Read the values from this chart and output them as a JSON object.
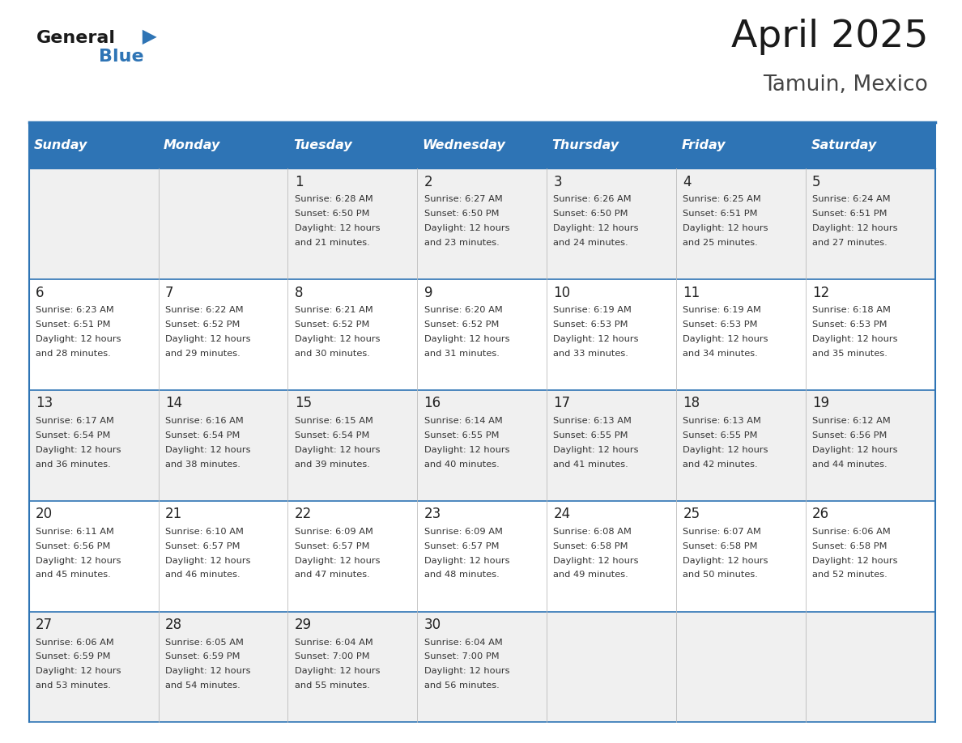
{
  "title": "April 2025",
  "subtitle": "Tamuin, Mexico",
  "days_of_week": [
    "Sunday",
    "Monday",
    "Tuesday",
    "Wednesday",
    "Thursday",
    "Friday",
    "Saturday"
  ],
  "header_bg": "#2E74B5",
  "header_text_color": "#FFFFFF",
  "cell_bg_odd": "#F0F0F0",
  "cell_bg_even": "#FFFFFF",
  "grid_line_color": "#2E74B5",
  "day_number_color": "#222222",
  "cell_text_color": "#333333",
  "title_color": "#1a1a1a",
  "subtitle_color": "#444444",
  "logo_general_color": "#1a1a1a",
  "logo_blue_color": "#2E74B5",
  "logo_triangle_color": "#2E74B5",
  "calendar": [
    [
      {
        "day": "",
        "sunrise": "",
        "sunset": "",
        "daylight": ""
      },
      {
        "day": "",
        "sunrise": "",
        "sunset": "",
        "daylight": ""
      },
      {
        "day": "1",
        "sunrise": "6:28 AM",
        "sunset": "6:50 PM",
        "daylight": "and 21 minutes."
      },
      {
        "day": "2",
        "sunrise": "6:27 AM",
        "sunset": "6:50 PM",
        "daylight": "and 23 minutes."
      },
      {
        "day": "3",
        "sunrise": "6:26 AM",
        "sunset": "6:50 PM",
        "daylight": "and 24 minutes."
      },
      {
        "day": "4",
        "sunrise": "6:25 AM",
        "sunset": "6:51 PM",
        "daylight": "and 25 minutes."
      },
      {
        "day": "5",
        "sunrise": "6:24 AM",
        "sunset": "6:51 PM",
        "daylight": "and 27 minutes."
      }
    ],
    [
      {
        "day": "6",
        "sunrise": "6:23 AM",
        "sunset": "6:51 PM",
        "daylight": "and 28 minutes."
      },
      {
        "day": "7",
        "sunrise": "6:22 AM",
        "sunset": "6:52 PM",
        "daylight": "and 29 minutes."
      },
      {
        "day": "8",
        "sunrise": "6:21 AM",
        "sunset": "6:52 PM",
        "daylight": "and 30 minutes."
      },
      {
        "day": "9",
        "sunrise": "6:20 AM",
        "sunset": "6:52 PM",
        "daylight": "and 31 minutes."
      },
      {
        "day": "10",
        "sunrise": "6:19 AM",
        "sunset": "6:53 PM",
        "daylight": "and 33 minutes."
      },
      {
        "day": "11",
        "sunrise": "6:19 AM",
        "sunset": "6:53 PM",
        "daylight": "and 34 minutes."
      },
      {
        "day": "12",
        "sunrise": "6:18 AM",
        "sunset": "6:53 PM",
        "daylight": "and 35 minutes."
      }
    ],
    [
      {
        "day": "13",
        "sunrise": "6:17 AM",
        "sunset": "6:54 PM",
        "daylight": "and 36 minutes."
      },
      {
        "day": "14",
        "sunrise": "6:16 AM",
        "sunset": "6:54 PM",
        "daylight": "and 38 minutes."
      },
      {
        "day": "15",
        "sunrise": "6:15 AM",
        "sunset": "6:54 PM",
        "daylight": "and 39 minutes."
      },
      {
        "day": "16",
        "sunrise": "6:14 AM",
        "sunset": "6:55 PM",
        "daylight": "and 40 minutes."
      },
      {
        "day": "17",
        "sunrise": "6:13 AM",
        "sunset": "6:55 PM",
        "daylight": "and 41 minutes."
      },
      {
        "day": "18",
        "sunrise": "6:13 AM",
        "sunset": "6:55 PM",
        "daylight": "and 42 minutes."
      },
      {
        "day": "19",
        "sunrise": "6:12 AM",
        "sunset": "6:56 PM",
        "daylight": "and 44 minutes."
      }
    ],
    [
      {
        "day": "20",
        "sunrise": "6:11 AM",
        "sunset": "6:56 PM",
        "daylight": "and 45 minutes."
      },
      {
        "day": "21",
        "sunrise": "6:10 AM",
        "sunset": "6:57 PM",
        "daylight": "and 46 minutes."
      },
      {
        "day": "22",
        "sunrise": "6:09 AM",
        "sunset": "6:57 PM",
        "daylight": "and 47 minutes."
      },
      {
        "day": "23",
        "sunrise": "6:09 AM",
        "sunset": "6:57 PM",
        "daylight": "and 48 minutes."
      },
      {
        "day": "24",
        "sunrise": "6:08 AM",
        "sunset": "6:58 PM",
        "daylight": "and 49 minutes."
      },
      {
        "day": "25",
        "sunrise": "6:07 AM",
        "sunset": "6:58 PM",
        "daylight": "and 50 minutes."
      },
      {
        "day": "26",
        "sunrise": "6:06 AM",
        "sunset": "6:58 PM",
        "daylight": "and 52 minutes."
      }
    ],
    [
      {
        "day": "27",
        "sunrise": "6:06 AM",
        "sunset": "6:59 PM",
        "daylight": "and 53 minutes."
      },
      {
        "day": "28",
        "sunrise": "6:05 AM",
        "sunset": "6:59 PM",
        "daylight": "and 54 minutes."
      },
      {
        "day": "29",
        "sunrise": "6:04 AM",
        "sunset": "7:00 PM",
        "daylight": "and 55 minutes."
      },
      {
        "day": "30",
        "sunrise": "6:04 AM",
        "sunset": "7:00 PM",
        "daylight": "and 56 minutes."
      },
      {
        "day": "",
        "sunrise": "",
        "sunset": "",
        "daylight": ""
      },
      {
        "day": "",
        "sunrise": "",
        "sunset": "",
        "daylight": ""
      },
      {
        "day": "",
        "sunrise": "",
        "sunset": "",
        "daylight": ""
      }
    ]
  ]
}
